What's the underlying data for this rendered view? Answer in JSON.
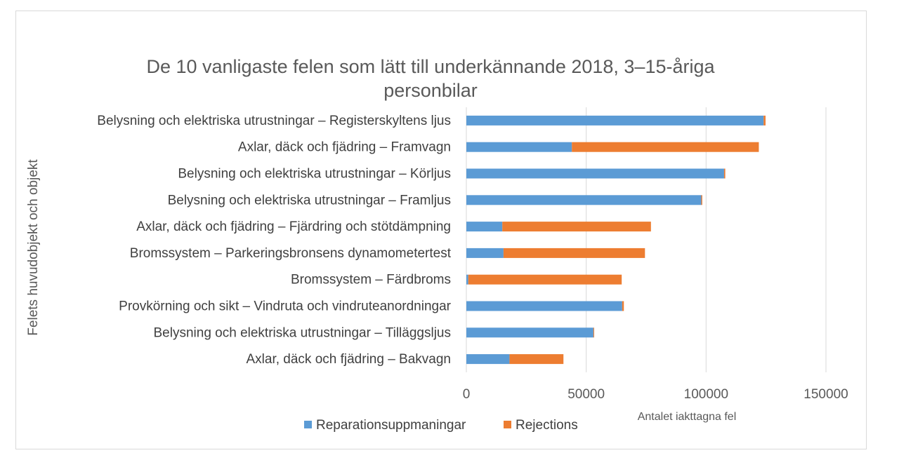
{
  "chart_data": {
    "type": "bar",
    "orientation": "horizontal",
    "stacked": true,
    "title_lines": [
      "De 10 vanligaste felen som lätt till underkännande 2018, 3–15-åriga",
      "personbilar"
    ],
    "xlabel": "Antalet iakttagna fel",
    "ylabel": "Felets huvudobjekt och objekt",
    "xlim": [
      0,
      150000
    ],
    "xticks": [
      0,
      50000,
      100000,
      150000
    ],
    "xtick_labels": [
      "0",
      "50000",
      "100000",
      "150000"
    ],
    "grid": true,
    "legend_position": "bottom",
    "categories": [
      "Belysning och elektriska utrustningar – Registerskyltens ljus",
      "Axlar, däck och fjädring – Framvagn",
      "Belysning och elektriska utrustningar – Körljus",
      "Belysning och elektriska utrustningar – Framljus",
      "Axlar, däck och fjädring – Fjärdring och stötdämpning",
      "Bromssystem – Parkeringsbronsens dynamometertest",
      "Bromssystem – Färdbroms",
      "Provkörning och sikt – Vindruta och vindruteanordningar",
      "Belysning och elektriska utrustningar – Tilläggsljus",
      "Axlar, däck och fjädring – Bakvagn"
    ],
    "series": [
      {
        "name": "Reparationsuppmaningar",
        "color": "#5b9bd5",
        "values": [
          124000,
          44000,
          107500,
          98000,
          15000,
          15500,
          800,
          65000,
          53000,
          18000
        ]
      },
      {
        "name": "Rejections",
        "color": "#ed7d31",
        "values": [
          800,
          78000,
          500,
          400,
          62000,
          59000,
          64000,
          700,
          300,
          22500
        ]
      }
    ]
  }
}
